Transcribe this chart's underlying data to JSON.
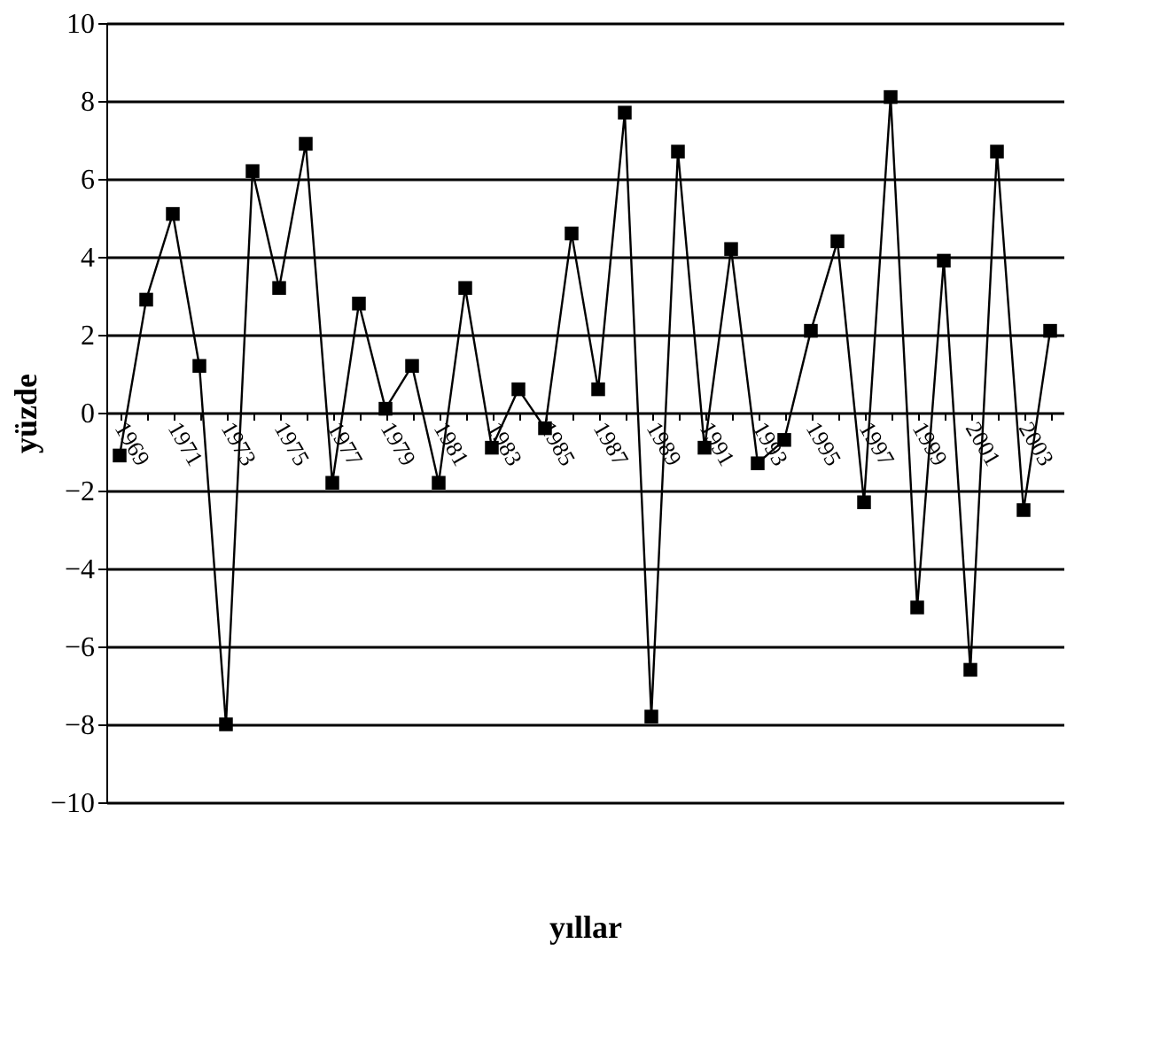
{
  "chart_data": {
    "type": "line",
    "xlabel": "yıllar",
    "ylabel": "yüzde",
    "categories": [
      "1969",
      null,
      "1971",
      null,
      "1973",
      null,
      "1975",
      null,
      "1977",
      null,
      "1979",
      null,
      "1981",
      null,
      "1983",
      null,
      "1985",
      null,
      "1987",
      null,
      "1989",
      null,
      "1991",
      null,
      "1993",
      null,
      "1995",
      null,
      "1997",
      null,
      "1999",
      null,
      "2001",
      null,
      "2003",
      null
    ],
    "series": [
      {
        "color": "#000000",
        "values": [
          -1.1,
          2.9,
          5.1,
          1.2,
          -8.0,
          6.2,
          3.2,
          6.9,
          -1.8,
          2.8,
          0.1,
          1.2,
          -1.8,
          3.2,
          -0.9,
          0.6,
          -0.4,
          4.6,
          0.6,
          7.7,
          -7.8,
          6.7,
          -0.9,
          4.2,
          -1.3,
          -0.7,
          2.1,
          4.4,
          -2.3,
          8.1,
          -5.0,
          3.9,
          -6.6,
          6.7,
          -2.5,
          2.1
        ]
      }
    ],
    "ylim": [
      -10,
      10
    ],
    "yticks": [
      -10,
      -8,
      -6,
      -4,
      -2,
      0,
      2,
      4,
      6,
      8,
      10
    ],
    "grid": "y",
    "marker": "square",
    "line_style": "solid"
  }
}
